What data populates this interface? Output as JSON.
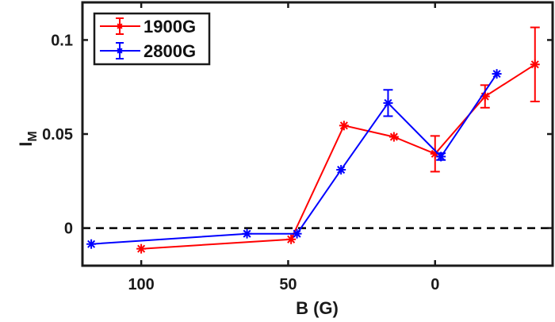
{
  "chart_data": {
    "type": "line",
    "title": "",
    "xlabel": "B (G)",
    "ylabel": "I",
    "ylabel_subscript": "M",
    "xlim": [
      120,
      -40
    ],
    "x_reversed": true,
    "ylim": [
      -0.02,
      0.12
    ],
    "xticks": [
      100,
      50,
      0
    ],
    "xtick_labels": [
      "100",
      "50",
      "0"
    ],
    "yticks": [
      0,
      0.05,
      0.1
    ],
    "ytick_labels": [
      "0",
      "0.05",
      "0.1"
    ],
    "grid": false,
    "reference_line": {
      "y": 0,
      "style": "dashed",
      "color": "#000000"
    },
    "legend": {
      "placement": "top-left",
      "entries": [
        "1900G",
        "2800G"
      ]
    },
    "series": [
      {
        "name": "1900G",
        "color": "#ff0000",
        "marker": "asterisk",
        "x": [
          100,
          49,
          31,
          14,
          0,
          -17,
          -34
        ],
        "y": [
          -0.011,
          -0.006,
          0.0545,
          0.0485,
          0.0395,
          0.07,
          0.087
        ],
        "yerr": [
          0,
          0,
          0,
          0,
          0.0095,
          0.006,
          0.0197
        ]
      },
      {
        "name": "2800G",
        "color": "#0000ff",
        "marker": "asterisk",
        "x": [
          117,
          64,
          47,
          32,
          16,
          -2,
          -21
        ],
        "y": [
          -0.0085,
          -0.003,
          -0.003,
          0.031,
          0.0665,
          0.038,
          0.082
        ],
        "yerr": [
          0,
          0,
          0,
          0,
          0.007,
          0.0018,
          0
        ]
      }
    ]
  }
}
